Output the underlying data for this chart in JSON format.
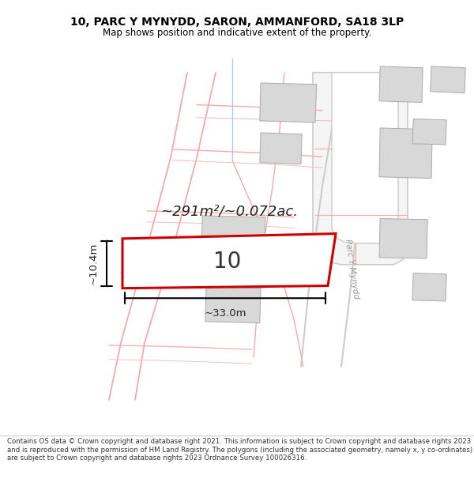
{
  "title_line1": "10, PARC Y MYNYDD, SARON, AMMANFORD, SA18 3LP",
  "title_line2": "Map shows position and indicative extent of the property.",
  "area_text": "~291m²/~0.072ac.",
  "plot_number": "10",
  "width_label": "~33.0m",
  "height_label": "~10.4m",
  "footer_text": "Contains OS data © Crown copyright and database right 2021. This information is subject to Crown copyright and database rights 2023 and is reproduced with the permission of HM Land Registry. The polygons (including the associated geometry, namely x, y co-ordinates) are subject to Crown copyright and database rights 2023 Ordnance Survey 100026316.",
  "bg_color": "#ffffff",
  "plot_fill": "#ffffff",
  "plot_edge_color": "#cc0000",
  "road_line_color": "#f5aaaa",
  "road_line_color2": "#f0c0c0",
  "building_fill": "#d8d8d8",
  "building_edge": "#aaaaaa",
  "road_outline_color": "#cccccc",
  "road_label_color": "#999999",
  "dim_line_color": "#000000",
  "title_color": "#000000",
  "footer_color": "#333333",
  "blue_line_color": "#aaccee"
}
